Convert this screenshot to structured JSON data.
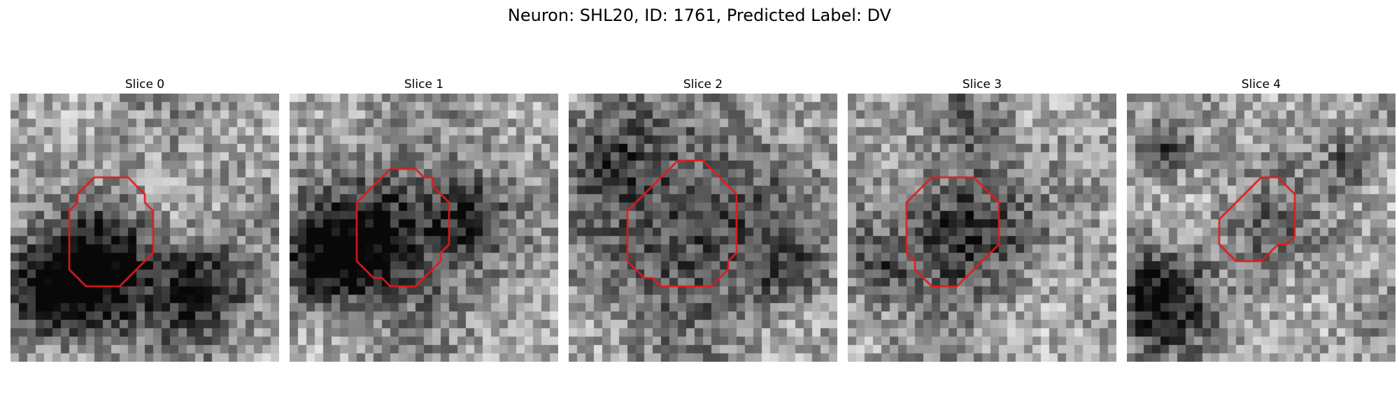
{
  "figure": {
    "title": "Neuron: SHL20, ID: 1761, Predicted Label: DV"
  },
  "contour_color": "#e41a1c",
  "slices": [
    {
      "title": "Slice 0",
      "contour": [
        [
          14,
          10
        ],
        [
          15,
          11
        ],
        [
          16,
          12
        ],
        [
          16,
          13
        ],
        [
          17,
          14
        ],
        [
          17,
          15
        ],
        [
          17,
          16
        ],
        [
          17,
          17
        ],
        [
          17,
          18
        ],
        [
          17,
          19
        ],
        [
          16,
          20
        ],
        [
          15,
          21
        ],
        [
          14,
          22
        ],
        [
          13,
          23
        ],
        [
          12,
          23
        ],
        [
          11,
          23
        ],
        [
          10,
          23
        ],
        [
          9,
          23
        ],
        [
          8,
          22
        ],
        [
          7,
          21
        ],
        [
          7,
          20
        ],
        [
          7,
          19
        ],
        [
          7,
          18
        ],
        [
          7,
          17
        ],
        [
          7,
          16
        ],
        [
          7,
          15
        ],
        [
          7,
          14
        ],
        [
          8,
          13
        ],
        [
          8,
          12
        ],
        [
          9,
          11
        ],
        [
          10,
          10
        ],
        [
          11,
          10
        ],
        [
          12,
          10
        ],
        [
          13,
          10
        ]
      ],
      "dark_blobs": [
        [
          10,
          22,
          4.5,
          0.55
        ],
        [
          22,
          23,
          4,
          0.55
        ],
        [
          4,
          23,
          4,
          0.5
        ],
        [
          12,
          17,
          4,
          0.2
        ]
      ]
    },
    {
      "title": "Slice 1",
      "contour": [
        [
          15,
          9
        ],
        [
          16,
          10
        ],
        [
          17,
          10
        ],
        [
          17,
          11
        ],
        [
          18,
          12
        ],
        [
          19,
          13
        ],
        [
          19,
          14
        ],
        [
          19,
          15
        ],
        [
          19,
          16
        ],
        [
          19,
          17
        ],
        [
          19,
          18
        ],
        [
          18,
          19
        ],
        [
          18,
          20
        ],
        [
          17,
          21
        ],
        [
          16,
          22
        ],
        [
          15,
          23
        ],
        [
          14,
          23
        ],
        [
          13,
          23
        ],
        [
          12,
          23
        ],
        [
          11,
          22
        ],
        [
          10,
          22
        ],
        [
          9,
          21
        ],
        [
          8,
          20
        ],
        [
          8,
          19
        ],
        [
          8,
          18
        ],
        [
          8,
          17
        ],
        [
          8,
          16
        ],
        [
          8,
          15
        ],
        [
          8,
          14
        ],
        [
          8,
          13
        ],
        [
          9,
          12
        ],
        [
          10,
          11
        ],
        [
          11,
          10
        ],
        [
          12,
          9
        ],
        [
          13,
          9
        ],
        [
          14,
          9
        ]
      ],
      "dark_blobs": [
        [
          13,
          16,
          6,
          0.45
        ],
        [
          6,
          18,
          4,
          0.45
        ],
        [
          21,
          14,
          3,
          0.35
        ],
        [
          3,
          21,
          3,
          0.3
        ]
      ]
    },
    {
      "title": "Slice 2",
      "contour": [
        [
          15,
          8
        ],
        [
          16,
          8
        ],
        [
          17,
          9
        ],
        [
          18,
          10
        ],
        [
          19,
          11
        ],
        [
          20,
          12
        ],
        [
          20,
          13
        ],
        [
          20,
          14
        ],
        [
          20,
          15
        ],
        [
          20,
          16
        ],
        [
          20,
          17
        ],
        [
          20,
          18
        ],
        [
          20,
          19
        ],
        [
          19,
          20
        ],
        [
          19,
          21
        ],
        [
          18,
          22
        ],
        [
          17,
          23
        ],
        [
          16,
          23
        ],
        [
          15,
          23
        ],
        [
          14,
          23
        ],
        [
          13,
          23
        ],
        [
          12,
          23
        ],
        [
          11,
          23
        ],
        [
          10,
          22
        ],
        [
          9,
          22
        ],
        [
          8,
          21
        ],
        [
          7,
          20
        ],
        [
          7,
          19
        ],
        [
          7,
          18
        ],
        [
          7,
          17
        ],
        [
          7,
          16
        ],
        [
          7,
          15
        ],
        [
          7,
          14
        ],
        [
          8,
          13
        ],
        [
          9,
          12
        ],
        [
          10,
          11
        ],
        [
          11,
          10
        ],
        [
          12,
          9
        ],
        [
          13,
          8
        ],
        [
          14,
          8
        ]
      ],
      "dark_blobs": [
        [
          14,
          15,
          8,
          0.4
        ],
        [
          4,
          6,
          4,
          0.3
        ],
        [
          25,
          20,
          3,
          0.25
        ]
      ]
    },
    {
      "title": "Slice 3",
      "contour": [
        [
          15,
          10
        ],
        [
          16,
          11
        ],
        [
          17,
          12
        ],
        [
          18,
          13
        ],
        [
          18,
          14
        ],
        [
          18,
          15
        ],
        [
          18,
          16
        ],
        [
          18,
          17
        ],
        [
          18,
          18
        ],
        [
          17,
          19
        ],
        [
          16,
          20
        ],
        [
          15,
          21
        ],
        [
          14,
          22
        ],
        [
          13,
          23
        ],
        [
          12,
          23
        ],
        [
          11,
          23
        ],
        [
          10,
          23
        ],
        [
          9,
          22
        ],
        [
          8,
          21
        ],
        [
          8,
          20
        ],
        [
          7,
          19
        ],
        [
          7,
          18
        ],
        [
          7,
          17
        ],
        [
          7,
          16
        ],
        [
          7,
          15
        ],
        [
          7,
          14
        ],
        [
          7,
          13
        ],
        [
          8,
          12
        ],
        [
          9,
          11
        ],
        [
          10,
          10
        ],
        [
          11,
          10
        ],
        [
          12,
          10
        ],
        [
          13,
          10
        ],
        [
          14,
          10
        ]
      ],
      "dark_blobs": [
        [
          13,
          16,
          5,
          0.5
        ],
        [
          3,
          20,
          3,
          0.3
        ],
        [
          14,
          3,
          3,
          0.25
        ]
      ]
    },
    {
      "title": "Slice 4",
      "contour": [
        [
          18,
          10
        ],
        [
          19,
          11
        ],
        [
          20,
          12
        ],
        [
          20,
          13
        ],
        [
          20,
          14
        ],
        [
          20,
          15
        ],
        [
          20,
          16
        ],
        [
          20,
          17
        ],
        [
          19,
          18
        ],
        [
          18,
          18
        ],
        [
          17,
          19
        ],
        [
          16,
          20
        ],
        [
          15,
          20
        ],
        [
          14,
          20
        ],
        [
          13,
          20
        ],
        [
          12,
          19
        ],
        [
          11,
          18
        ],
        [
          11,
          17
        ],
        [
          11,
          16
        ],
        [
          11,
          15
        ],
        [
          12,
          14
        ],
        [
          13,
          13
        ],
        [
          14,
          12
        ],
        [
          15,
          11
        ],
        [
          16,
          10
        ],
        [
          17,
          10
        ]
      ],
      "dark_blobs": [
        [
          3,
          24,
          4,
          0.6
        ],
        [
          4,
          6,
          2,
          0.5
        ],
        [
          16,
          16,
          4,
          0.2
        ],
        [
          26,
          8,
          2,
          0.3
        ]
      ]
    }
  ]
}
